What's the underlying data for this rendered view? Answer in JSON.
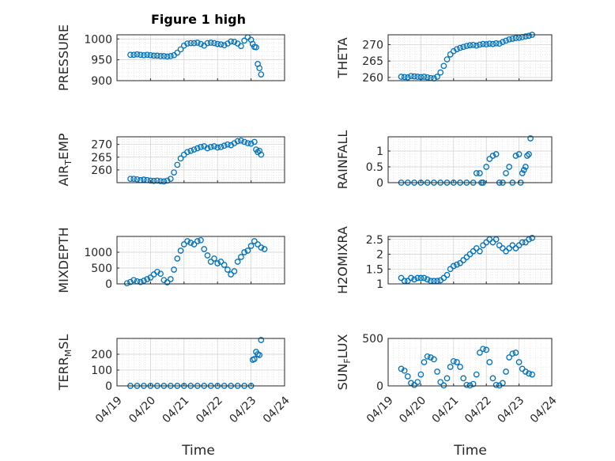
{
  "figure": {
    "title": "Figure 1 high",
    "xlabel": "Time"
  },
  "chart_data": [
    {
      "type": "scatter",
      "ylabel": "PRESSURE",
      "ylabel_sub": null,
      "xlim": [
        0,
        5
      ],
      "ylim": [
        900,
        1010
      ],
      "yticks": [
        900,
        950,
        1000
      ],
      "xtick_labels": [
        "04/19",
        "04/20",
        "04/21",
        "04/22",
        "04/23",
        "04/24"
      ],
      "x": [
        0.4,
        0.5,
        0.6,
        0.7,
        0.8,
        0.9,
        1.0,
        1.1,
        1.2,
        1.3,
        1.4,
        1.5,
        1.6,
        1.7,
        1.8,
        1.9,
        2.0,
        2.1,
        2.2,
        2.3,
        2.4,
        2.5,
        2.6,
        2.7,
        2.8,
        2.9,
        3.0,
        3.1,
        3.2,
        3.3,
        3.4,
        3.5,
        3.6,
        3.7,
        3.8,
        3.9,
        4.0,
        4.05,
        4.1,
        4.15,
        4.2,
        4.25,
        4.3
      ],
      "y": [
        962,
        962,
        963,
        962,
        961,
        962,
        961,
        960,
        960,
        959,
        959,
        958,
        959,
        961,
        967,
        975,
        984,
        989,
        990,
        990,
        991,
        988,
        984,
        990,
        991,
        990,
        988,
        987,
        985,
        989,
        994,
        993,
        989,
        983,
        996,
        1004,
        998,
        988,
        981,
        980,
        940,
        930,
        915
      ]
    },
    {
      "type": "scatter",
      "ylabel": "THETA",
      "ylabel_sub": null,
      "xlim": [
        0,
        5
      ],
      "ylim": [
        259,
        273
      ],
      "yticks": [
        260,
        265,
        270
      ],
      "xtick_labels": [
        "04/19",
        "04/20",
        "04/21",
        "04/22",
        "04/23",
        "04/24"
      ],
      "x": [
        0.4,
        0.5,
        0.6,
        0.7,
        0.8,
        0.9,
        1.0,
        1.1,
        1.2,
        1.3,
        1.4,
        1.5,
        1.6,
        1.7,
        1.8,
        1.9,
        2.0,
        2.1,
        2.2,
        2.3,
        2.4,
        2.5,
        2.6,
        2.7,
        2.8,
        2.9,
        3.0,
        3.1,
        3.2,
        3.3,
        3.4,
        3.5,
        3.6,
        3.7,
        3.8,
        3.9,
        4.0,
        4.1,
        4.2,
        4.3,
        4.4
      ],
      "y": [
        260.2,
        260.1,
        260.0,
        260.4,
        260.3,
        260.2,
        260.1,
        260.2,
        260.0,
        259.8,
        259.7,
        260.2,
        261.5,
        263.5,
        265.5,
        267.0,
        268.0,
        268.6,
        269.0,
        269.3,
        269.6,
        269.8,
        269.9,
        269.7,
        270.0,
        270.2,
        270.1,
        270.3,
        270.2,
        270.4,
        270.3,
        270.8,
        271.2,
        271.6,
        271.8,
        272.0,
        272.1,
        272.3,
        272.5,
        272.7,
        273.0
      ]
    },
    {
      "type": "scatter",
      "ylabel": "AIR",
      "ylabel_sub": "T",
      "ylabel_tail": "EMP",
      "xlim": [
        0,
        5
      ],
      "ylim": [
        255,
        273
      ],
      "yticks": [
        260,
        265,
        270
      ],
      "xtick_labels": [
        "04/19",
        "04/20",
        "04/21",
        "04/22",
        "04/23",
        "04/24"
      ],
      "x": [
        0.4,
        0.5,
        0.6,
        0.7,
        0.8,
        0.9,
        1.0,
        1.1,
        1.2,
        1.3,
        1.4,
        1.5,
        1.6,
        1.7,
        1.8,
        1.9,
        2.0,
        2.1,
        2.2,
        2.3,
        2.4,
        2.5,
        2.6,
        2.7,
        2.8,
        2.9,
        3.0,
        3.1,
        3.2,
        3.3,
        3.4,
        3.5,
        3.6,
        3.7,
        3.8,
        3.9,
        4.0,
        4.1,
        4.15,
        4.2,
        4.25,
        4.3
      ],
      "y": [
        256.5,
        256.5,
        256.3,
        256.0,
        256.2,
        256.0,
        255.8,
        255.7,
        255.8,
        255.6,
        255.5,
        255.8,
        256.5,
        259.0,
        262.0,
        264.5,
        266.0,
        267.0,
        267.5,
        268.0,
        268.5,
        269.0,
        269.3,
        268.5,
        269.0,
        269.3,
        268.8,
        269.0,
        269.5,
        270.0,
        269.7,
        270.5,
        271.3,
        271.5,
        271.0,
        270.5,
        270.3,
        271.0,
        268.0,
        267.0,
        267.5,
        266.0
      ]
    },
    {
      "type": "scatter",
      "ylabel": "RAINFALL",
      "ylabel_sub": null,
      "xlim": [
        0,
        5
      ],
      "ylim": [
        0,
        1.45
      ],
      "yticks": [
        0,
        0.5,
        1
      ],
      "xtick_labels": [
        "04/19",
        "04/20",
        "04/21",
        "04/22",
        "04/23",
        "04/24"
      ],
      "x": [
        0.4,
        0.6,
        0.8,
        1.0,
        1.2,
        1.4,
        1.6,
        1.8,
        2.0,
        2.2,
        2.4,
        2.6,
        2.7,
        2.8,
        2.85,
        2.9,
        3.0,
        3.1,
        3.2,
        3.3,
        3.4,
        3.5,
        3.6,
        3.7,
        3.8,
        3.9,
        4.0,
        4.05,
        4.1,
        4.15,
        4.2,
        4.25,
        4.3,
        4.35
      ],
      "y": [
        0,
        0,
        0,
        0,
        0,
        0,
        0,
        0,
        0,
        0,
        0,
        0,
        0.3,
        0.3,
        0,
        0,
        0.5,
        0.75,
        0.85,
        0.9,
        0,
        0,
        0.3,
        0.5,
        0,
        0.85,
        0.9,
        0,
        0.3,
        0.4,
        0.5,
        0.85,
        0.9,
        1.4
      ]
    },
    {
      "type": "scatter",
      "ylabel": "MIXDEPTH",
      "ylabel_sub": null,
      "xlim": [
        0,
        5
      ],
      "ylim": [
        0,
        1500
      ],
      "yticks": [
        0,
        500,
        1000
      ],
      "xtick_labels": [
        "04/19",
        "04/20",
        "04/21",
        "04/22",
        "04/23",
        "04/24"
      ],
      "x": [
        0.3,
        0.4,
        0.5,
        0.6,
        0.7,
        0.8,
        0.9,
        1.0,
        1.1,
        1.2,
        1.3,
        1.4,
        1.5,
        1.6,
        1.7,
        1.8,
        1.9,
        2.0,
        2.1,
        2.2,
        2.3,
        2.4,
        2.5,
        2.6,
        2.7,
        2.8,
        2.9,
        3.0,
        3.1,
        3.2,
        3.3,
        3.4,
        3.5,
        3.6,
        3.7,
        3.8,
        3.9,
        4.0,
        4.1,
        4.2,
        4.3,
        4.4
      ],
      "y": [
        20,
        60,
        120,
        80,
        60,
        100,
        150,
        200,
        300,
        380,
        320,
        120,
        50,
        150,
        450,
        800,
        1050,
        1250,
        1350,
        1300,
        1250,
        1350,
        1380,
        1100,
        900,
        700,
        800,
        650,
        700,
        600,
        450,
        300,
        400,
        700,
        850,
        1000,
        1050,
        1200,
        1350,
        1250,
        1150,
        1100
      ]
    },
    {
      "type": "scatter",
      "ylabel": "H2OMIXRA",
      "ylabel_sub": null,
      "xlim": [
        0,
        5
      ],
      "ylim": [
        1,
        2.6
      ],
      "yticks": [
        1,
        1.5,
        2,
        2.5
      ],
      "xtick_labels": [
        "04/19",
        "04/20",
        "04/21",
        "04/22",
        "04/23",
        "04/24"
      ],
      "x": [
        0.4,
        0.5,
        0.6,
        0.7,
        0.8,
        0.9,
        1.0,
        1.1,
        1.2,
        1.3,
        1.4,
        1.5,
        1.6,
        1.7,
        1.8,
        1.9,
        2.0,
        2.1,
        2.2,
        2.3,
        2.4,
        2.5,
        2.6,
        2.7,
        2.8,
        2.9,
        3.0,
        3.1,
        3.2,
        3.3,
        3.4,
        3.5,
        3.6,
        3.7,
        3.8,
        3.9,
        4.0,
        4.1,
        4.2,
        4.3,
        4.4
      ],
      "y": [
        1.2,
        1.1,
        1.1,
        1.2,
        1.15,
        1.2,
        1.2,
        1.2,
        1.15,
        1.1,
        1.1,
        1.1,
        1.12,
        1.2,
        1.3,
        1.5,
        1.6,
        1.65,
        1.7,
        1.8,
        1.9,
        2.0,
        2.1,
        2.2,
        2.1,
        2.3,
        2.4,
        2.5,
        2.4,
        2.5,
        2.3,
        2.2,
        2.1,
        2.2,
        2.3,
        2.2,
        2.3,
        2.4,
        2.4,
        2.5,
        2.55
      ]
    },
    {
      "type": "scatter",
      "ylabel": "TERR",
      "ylabel_sub": "M",
      "ylabel_tail": "SL",
      "xlim": [
        0,
        5
      ],
      "ylim": [
        0,
        300
      ],
      "yticks": [
        0,
        100,
        200
      ],
      "xtick_labels": [
        "04/19",
        "04/20",
        "04/21",
        "04/22",
        "04/23",
        "04/24"
      ],
      "x": [
        0.4,
        0.6,
        0.8,
        1.0,
        1.2,
        1.4,
        1.6,
        1.8,
        2.0,
        2.2,
        2.4,
        2.6,
        2.8,
        3.0,
        3.2,
        3.4,
        3.6,
        3.8,
        4.0,
        4.05,
        4.1,
        4.15,
        4.2,
        4.25,
        4.3
      ],
      "y": [
        0,
        0,
        0,
        0,
        0,
        0,
        0,
        0,
        0,
        0,
        0,
        0,
        0,
        0,
        0,
        0,
        0,
        0,
        0,
        165,
        170,
        215,
        200,
        195,
        290
      ]
    },
    {
      "type": "scatter",
      "ylabel": "SUN",
      "ylabel_sub": "F",
      "ylabel_tail": "LUX",
      "xlim": [
        0,
        5
      ],
      "ylim": [
        0,
        500
      ],
      "yticks": [
        0,
        500
      ],
      "xtick_labels": [
        "04/19",
        "04/20",
        "04/21",
        "04/22",
        "04/23",
        "04/24"
      ],
      "x": [
        0.4,
        0.5,
        0.6,
        0.7,
        0.8,
        0.9,
        1.0,
        1.1,
        1.2,
        1.3,
        1.4,
        1.5,
        1.6,
        1.7,
        1.8,
        1.9,
        2.0,
        2.1,
        2.2,
        2.3,
        2.4,
        2.5,
        2.6,
        2.7,
        2.8,
        2.9,
        3.0,
        3.1,
        3.2,
        3.3,
        3.4,
        3.5,
        3.6,
        3.7,
        3.8,
        3.9,
        4.0,
        4.1,
        4.2,
        4.3,
        4.4
      ],
      "y": [
        180,
        160,
        100,
        30,
        10,
        40,
        120,
        250,
        310,
        300,
        280,
        150,
        40,
        5,
        80,
        200,
        260,
        250,
        200,
        80,
        10,
        5,
        20,
        120,
        350,
        390,
        380,
        250,
        80,
        10,
        5,
        30,
        150,
        300,
        340,
        350,
        250,
        180,
        150,
        130,
        120
      ]
    }
  ]
}
